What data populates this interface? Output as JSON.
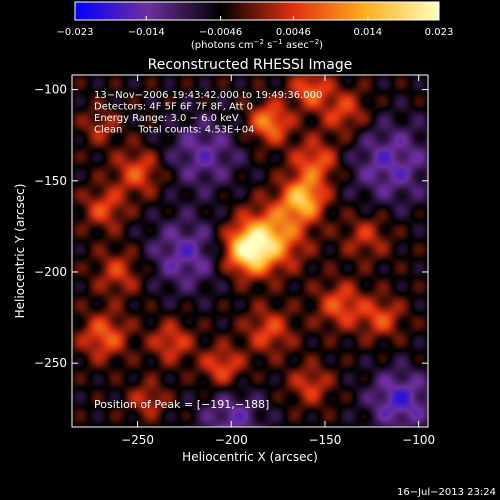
{
  "chart_data": {
    "type": "heatmap",
    "title": "Reconstructed RHESSI Image",
    "xlabel": "Heliocentric X (arcsec)",
    "ylabel": "Heliocentric Y (arcsec)",
    "xlim": [
      -285,
      -95
    ],
    "ylim": [
      -285,
      -92
    ],
    "x_ticks": [
      -250,
      -200,
      -150,
      -100
    ],
    "y_ticks": [
      -250,
      -200,
      -150,
      -100
    ],
    "x_tick_labels": [
      "−250",
      "−200",
      "−150",
      "−100"
    ],
    "y_tick_labels": [
      "−250",
      "−200",
      "−150",
      "−100"
    ],
    "colorbar": {
      "range": [
        -0.023,
        0.023
      ],
      "ticks": [
        -0.023,
        -0.014,
        -0.0046,
        0.0046,
        0.014,
        0.023
      ],
      "tick_labels": [
        "−0.023",
        "−0.014",
        "−0.0046",
        "0.0046",
        "0.014",
        "0.023"
      ],
      "label_main": "(photons cm",
      "label_exp1": "−2",
      "label_mid": " s",
      "label_exp2": "−1",
      "label_mid2": " asec",
      "label_exp3": "−2",
      "label_end": ")",
      "colors": [
        "#0000ff",
        "#6e2f9e",
        "#000000",
        "#e03010",
        "#ffb020",
        "#ffffc0"
      ]
    },
    "info_lines": [
      "13−Nov−2006 19:43:42.000 to 19:49:36.000",
      "Detectors: 4F 5F 6F 7F 8F, Att 0",
      "Energy Range: 3.0 − 6.0 keV",
      "Clean     Total counts: 4.53E+04"
    ],
    "peak_label": "Position of Peak = [−191,−188]",
    "peak": [
      -191,
      -188
    ],
    "sources": [
      {
        "x": -191,
        "y": -188,
        "amp": 0.023,
        "sigma": 9
      },
      {
        "x": -178,
        "y": -180,
        "amp": 0.016,
        "sigma": 12
      },
      {
        "x": -162,
        "y": -160,
        "amp": 0.019,
        "sigma": 8
      },
      {
        "x": -155,
        "y": -140,
        "amp": 0.012,
        "sigma": 9
      },
      {
        "x": -180,
        "y": -118,
        "amp": 0.015,
        "sigma": 8
      },
      {
        "x": -140,
        "y": -112,
        "amp": 0.01,
        "sigma": 9
      },
      {
        "x": -158,
        "y": -100,
        "amp": 0.012,
        "sigma": 7
      },
      {
        "x": -250,
        "y": -145,
        "amp": 0.011,
        "sigma": 9
      },
      {
        "x": -268,
        "y": -165,
        "amp": 0.01,
        "sigma": 8
      },
      {
        "x": -260,
        "y": -200,
        "amp": 0.009,
        "sigma": 9
      },
      {
        "x": -268,
        "y": -235,
        "amp": 0.012,
        "sigma": 9
      },
      {
        "x": -232,
        "y": -238,
        "amp": 0.01,
        "sigma": 8
      },
      {
        "x": -205,
        "y": -252,
        "amp": 0.011,
        "sigma": 8
      },
      {
        "x": -180,
        "y": -232,
        "amp": 0.01,
        "sigma": 9
      },
      {
        "x": -158,
        "y": -262,
        "amp": 0.009,
        "sigma": 8
      },
      {
        "x": -142,
        "y": -218,
        "amp": 0.011,
        "sigma": 9
      },
      {
        "x": -120,
        "y": -225,
        "amp": 0.01,
        "sigma": 8
      },
      {
        "x": -128,
        "y": -180,
        "amp": 0.008,
        "sigma": 9
      },
      {
        "x": -270,
        "y": -120,
        "amp": 0.007,
        "sigma": 7
      },
      {
        "x": -245,
        "y": -270,
        "amp": 0.008,
        "sigma": 7
      },
      {
        "x": -215,
        "y": -135,
        "amp": -0.009,
        "sigma": 14
      },
      {
        "x": -225,
        "y": -190,
        "amp": -0.01,
        "sigma": 14
      },
      {
        "x": -115,
        "y": -140,
        "amp": -0.01,
        "sigma": 16
      },
      {
        "x": -110,
        "y": -270,
        "amp": -0.012,
        "sigma": 12
      },
      {
        "x": -200,
        "y": -280,
        "amp": -0.009,
        "sigma": 12
      }
    ]
  },
  "footer_date": "16−Jul−2013 23:24"
}
